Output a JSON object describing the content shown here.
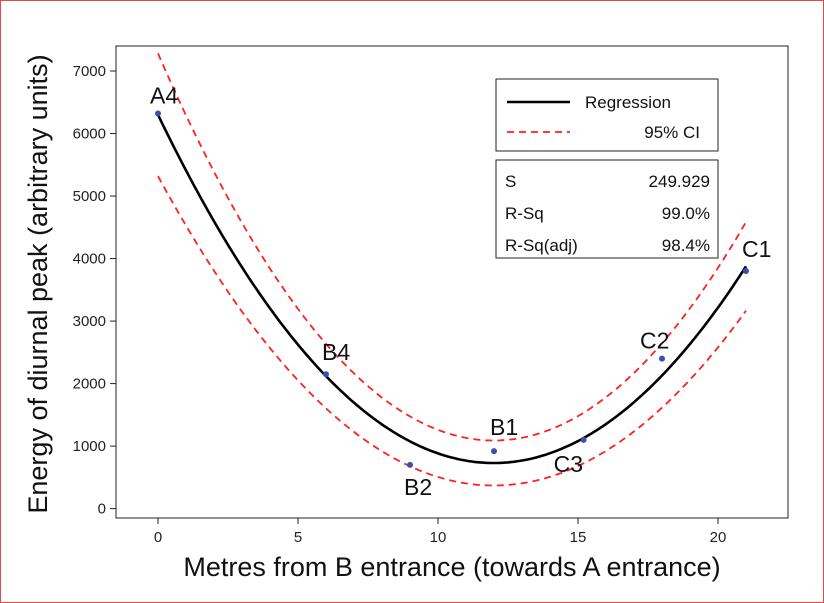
{
  "chart_data": {
    "type": "scatter",
    "xlabel": "Metres from B entrance (towards A entrance)",
    "ylabel": "Energy of diurnal peak (arbitrary units)",
    "xlim": [
      -1.5,
      22.5
    ],
    "ylim": [
      -150,
      7400
    ],
    "x_ticks": [
      0,
      5,
      10,
      15,
      20
    ],
    "y_ticks": [
      0,
      1000,
      2000,
      3000,
      4000,
      5000,
      6000,
      7000
    ],
    "points": [
      {
        "label": "A4",
        "x": 0,
        "y": 6320
      },
      {
        "label": "B4",
        "x": 6,
        "y": 2150
      },
      {
        "label": "B2",
        "x": 9,
        "y": 700
      },
      {
        "label": "B1",
        "x": 12,
        "y": 920
      },
      {
        "label": "C3",
        "x": 15.2,
        "y": 1100
      },
      {
        "label": "C2",
        "x": 18,
        "y": 2400
      },
      {
        "label": "C1",
        "x": 21,
        "y": 3800
      }
    ],
    "regression": {
      "a": 6300,
      "b": -929.2,
      "c": 38.75
    },
    "ci_halfwidth": {
      "min": 360,
      "min_at": 12,
      "growth": 1.45
    },
    "legend": {
      "position": "top-right",
      "entries": [
        {
          "label": "Regression",
          "style": "solid",
          "color": "#000000"
        },
        {
          "label": "95% CI",
          "style": "dashed",
          "color": "#ff2020"
        }
      ]
    },
    "stats": [
      {
        "name": "S",
        "value": "249.929"
      },
      {
        "name": "R-Sq",
        "value": "99.0%"
      },
      {
        "name": "R-Sq(adj)",
        "value": "98.4%"
      }
    ],
    "colors": {
      "points": "#3a4fb0",
      "regression": "#000000",
      "ci": "#ff2020",
      "frame": "#e24a4a"
    }
  }
}
